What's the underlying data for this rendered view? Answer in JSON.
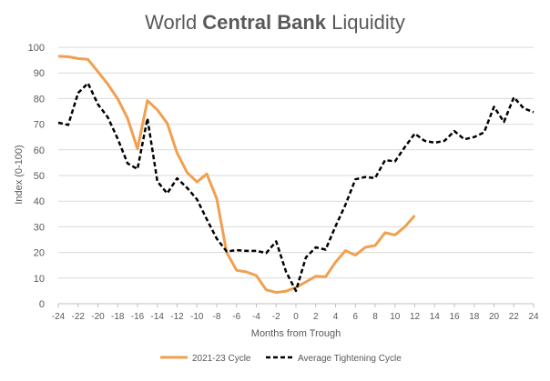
{
  "chart_data": {
    "type": "line",
    "title_prefix": "World ",
    "title_bold": "Central Bank",
    "title_suffix": " Liquidity",
    "xlabel": "Months from Trough",
    "ylabel": "Index (0-100)",
    "xlim": [
      -24,
      24
    ],
    "ylim": [
      0,
      100
    ],
    "x_ticks": [
      -24,
      -22,
      -20,
      -18,
      -16,
      -14,
      -12,
      -10,
      -8,
      -6,
      -4,
      -2,
      0,
      2,
      4,
      6,
      8,
      10,
      12,
      14,
      16,
      18,
      20,
      22,
      24
    ],
    "y_ticks": [
      0,
      10,
      20,
      30,
      40,
      50,
      60,
      70,
      80,
      90,
      100
    ],
    "grid": "horizontal",
    "legend": "bottom",
    "series": [
      {
        "name": "2021-23 Cycle",
        "color": "#f0a050",
        "style": "solid",
        "x": [
          -24,
          -23,
          -22,
          -21,
          -20,
          -19,
          -18,
          -17,
          -16,
          -15,
          -14,
          -13,
          -12,
          -11,
          -10,
          -9,
          -8,
          -7,
          -6,
          -5,
          -4,
          -3,
          -2,
          -1,
          0,
          1,
          2,
          3,
          4,
          5,
          6,
          7,
          8,
          9,
          10,
          11,
          12
        ],
        "values": [
          96.5,
          96.3,
          95.6,
          95.3,
          90.5,
          85.6,
          79.9,
          72.3,
          60.4,
          79.2,
          75.6,
          70.4,
          58.8,
          51.2,
          47.5,
          50.6,
          41.0,
          20.0,
          13.0,
          12.4,
          11.0,
          5.4,
          4.4,
          4.9,
          6.3,
          8.5,
          10.7,
          10.5,
          16.2,
          20.7,
          18.9,
          22.0,
          22.7,
          27.7,
          26.8,
          30.0,
          34.4
        ]
      },
      {
        "name": "Average Tightening Cycle",
        "color": "#000000",
        "style": "dashed",
        "x": [
          -24,
          -23,
          -22,
          -21,
          -20,
          -19,
          -18,
          -17,
          -16,
          -15,
          -14,
          -13,
          -12,
          -11,
          -10,
          -9,
          -8,
          -7,
          -6,
          -5,
          -4,
          -3,
          -2,
          -1,
          0,
          1,
          2,
          3,
          4,
          5,
          6,
          7,
          8,
          9,
          10,
          11,
          12,
          13,
          14,
          15,
          16,
          17,
          18,
          19,
          20,
          21,
          22,
          23,
          24
        ],
        "values": [
          70.6,
          69.7,
          82.2,
          86.0,
          77.8,
          72.7,
          64.3,
          54.7,
          52.5,
          72.3,
          47.7,
          43.0,
          48.9,
          45.2,
          40.7,
          32.9,
          25.4,
          20.4,
          20.9,
          20.6,
          20.6,
          19.8,
          24.3,
          12.5,
          5.0,
          18.0,
          22.0,
          21.1,
          30.2,
          38.6,
          48.5,
          49.4,
          49.0,
          56.0,
          55.5,
          61.1,
          66.3,
          63.5,
          62.8,
          63.5,
          67.3,
          64.1,
          65.0,
          66.8,
          76.8,
          70.9,
          80.5,
          76.2,
          74.7
        ]
      }
    ]
  }
}
